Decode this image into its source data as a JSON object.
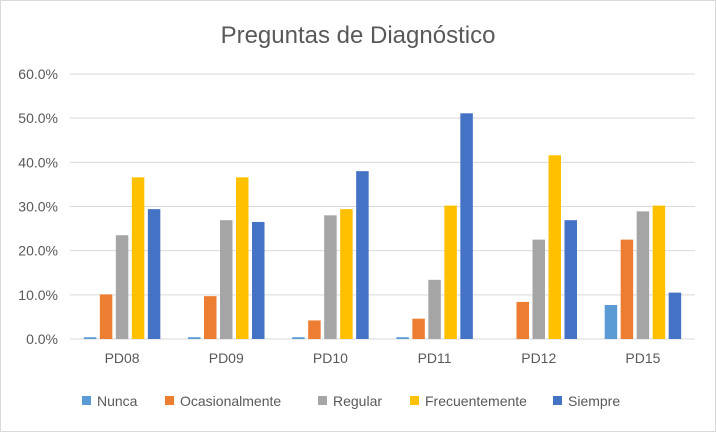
{
  "chart_data": {
    "type": "bar",
    "title": "Preguntas de Diagnóstico",
    "xlabel": "",
    "ylabel": "",
    "ylim": [
      0,
      0.6
    ],
    "ytick_values": [
      0,
      0.1,
      0.2,
      0.3,
      0.4,
      0.5,
      0.6
    ],
    "ytick_labels": [
      "0.0%",
      "10.0%",
      "20.0%",
      "30.0%",
      "40.0%",
      "50.0%",
      "60.0%"
    ],
    "grid": true,
    "legend_position": "bottom",
    "categories": [
      "PD08",
      "PD09",
      "PD10",
      "PD11",
      "PD12",
      "PD15"
    ],
    "series": [
      {
        "name": "Nunca",
        "color": "#5b9bd5",
        "values": [
          0.004,
          0.004,
          0.004,
          0.004,
          0.0,
          0.077
        ]
      },
      {
        "name": "Ocasionalmente",
        "color": "#ed7d31",
        "values": [
          0.101,
          0.097,
          0.042,
          0.046,
          0.084,
          0.225
        ]
      },
      {
        "name": "Regular",
        "color": "#a5a5a5",
        "values": [
          0.235,
          0.269,
          0.28,
          0.134,
          0.225,
          0.289
        ]
      },
      {
        "name": "Frecuentemente",
        "color": "#ffc000",
        "values": [
          0.366,
          0.366,
          0.294,
          0.302,
          0.416,
          0.302
        ]
      },
      {
        "name": "Siempre",
        "color": "#4472c4",
        "values": [
          0.294,
          0.265,
          0.38,
          0.511,
          0.269,
          0.105
        ]
      }
    ]
  }
}
